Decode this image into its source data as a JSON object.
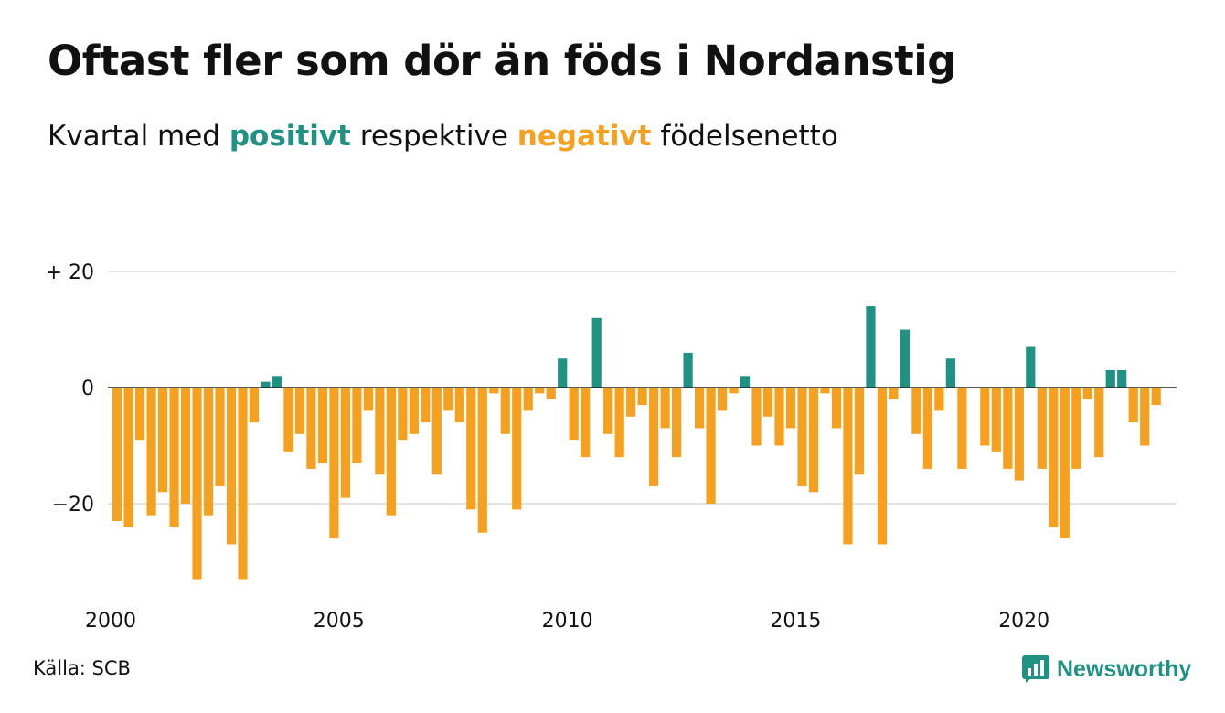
{
  "title": "Oftast fler som dör än föds i Nordanstig",
  "subtitle": {
    "prefix": "Kvartal med",
    "positive_word": "positivt",
    "middle": "respektive",
    "negative_word": "negativt",
    "suffix": "födelsenetto"
  },
  "source": "Källa: SCB",
  "logo": {
    "text": "Newsworthy",
    "icon": "newsworthy-logo-icon",
    "color": "#1f9283"
  },
  "colors": {
    "positive": "#1f9283",
    "negative": "#f5a11f",
    "grid": "#e3e3e3",
    "zero_line": "#222222"
  },
  "chart_data": {
    "type": "bar",
    "title": "Oftast fler som dör än föds i Nordanstig",
    "subtitle": "Kvartal med positivt respektive negativt födelsenetto",
    "xlabel": "",
    "ylabel": "",
    "ylim": [
      -35,
      22
    ],
    "xlim": [
      2000,
      2023.75
    ],
    "y_ticks": [
      20,
      0,
      -20
    ],
    "y_tick_labels": [
      "+ 20",
      "0",
      "−20"
    ],
    "x_ticks": [
      2000,
      2005,
      2010,
      2015,
      2020
    ],
    "x_tick_labels": [
      "2000",
      "2005",
      "2010",
      "2015",
      "2020"
    ],
    "grid": true,
    "start_year": 2000,
    "values": [
      -23,
      -24,
      -9,
      -22,
      -18,
      -24,
      -20,
      -33,
      -22,
      -17,
      -27,
      -33,
      -6,
      1,
      2,
      -11,
      -8,
      -14,
      -13,
      -26,
      -19,
      -13,
      -4,
      -15,
      -22,
      -9,
      -8,
      -6,
      -15,
      -4,
      -6,
      -21,
      -25,
      -1,
      -8,
      -21,
      -4,
      -1,
      -2,
      5,
      -9,
      -12,
      12,
      -8,
      -12,
      -5,
      -3,
      -17,
      -7,
      -12,
      6,
      -7,
      -20,
      -4,
      -1,
      2,
      -10,
      -5,
      -10,
      -7,
      -17,
      -18,
      -1,
      -7,
      -27,
      -15,
      14,
      -27,
      -2,
      10,
      -8,
      -14,
      -4,
      5,
      -14,
      0,
      -10,
      -11,
      -14,
      -16,
      7,
      -14,
      -24,
      -26,
      -14,
      -2,
      -12,
      3,
      3,
      -6,
      -10,
      -3
    ]
  }
}
